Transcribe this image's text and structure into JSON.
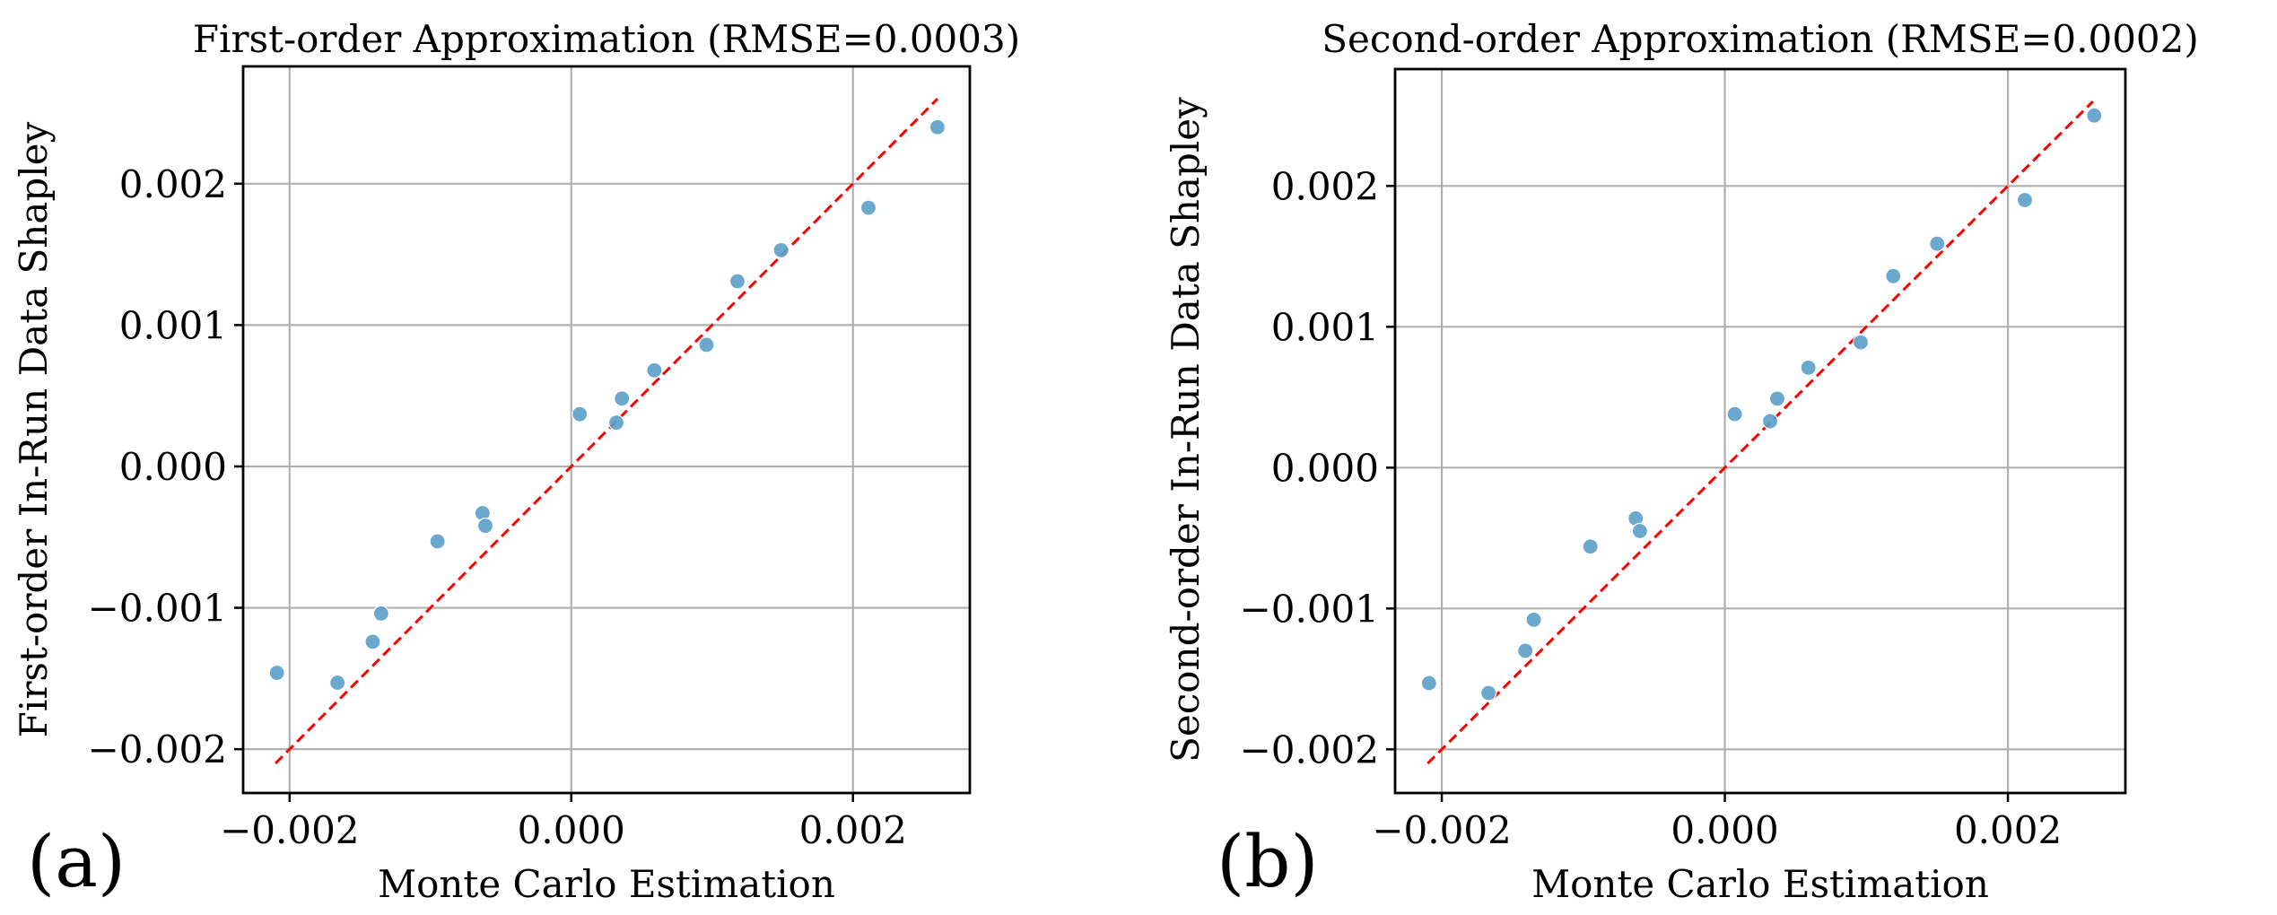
{
  "colors": {
    "points": "#5b9ec9",
    "reference_line": "#ff0000",
    "grid": "#b0b0b0"
  },
  "chart_data": [
    {
      "type": "scatter",
      "panel_label": "(a)",
      "title": "First-order Approximation (RMSE=0.0003)",
      "xlabel": "Monte Carlo Estimation",
      "ylabel": "First-order In-Run Data Shapley",
      "xlim": [
        -0.00233,
        0.00283
      ],
      "ylim": [
        -0.00231,
        0.00283
      ],
      "xticks": [
        -0.002,
        0.0,
        0.002
      ],
      "xtick_labels": [
        "−0.002",
        "0.000",
        "0.002"
      ],
      "yticks": [
        -0.002,
        -0.001,
        0.0,
        0.001,
        0.002
      ],
      "ytick_labels": [
        "−0.002",
        "−0.001",
        "0.000",
        "0.001",
        "0.002"
      ],
      "grid": true,
      "reference_line": {
        "style": "dashed",
        "x": [
          -0.0021,
          0.0026
        ],
        "y": [
          -0.0021,
          0.0026
        ]
      },
      "x": [
        -0.00209,
        -0.00166,
        -0.00141,
        -0.00135,
        -0.00095,
        -0.00063,
        -0.00061,
        6e-05,
        0.00032,
        0.00036,
        0.00059,
        0.00096,
        0.00118,
        0.00149,
        0.00211,
        0.0026
      ],
      "y": [
        -0.00146,
        -0.00153,
        -0.00124,
        -0.00104,
        -0.00053,
        -0.00033,
        -0.00042,
        0.00037,
        0.00031,
        0.00048,
        0.00068,
        0.00086,
        0.00131,
        0.00153,
        0.00183,
        0.0024
      ]
    },
    {
      "type": "scatter",
      "panel_label": "(b)",
      "title": "Second-order Approximation (RMSE=0.0002)",
      "xlabel": "Monte Carlo Estimation",
      "ylabel": "Second-order In-Run Data Shapley",
      "xlim": [
        -0.00233,
        0.00283
      ],
      "ylim": [
        -0.00231,
        0.00283
      ],
      "xticks": [
        -0.002,
        0.0,
        0.002
      ],
      "xtick_labels": [
        "−0.002",
        "0.000",
        "0.002"
      ],
      "yticks": [
        -0.002,
        -0.001,
        0.0,
        0.001,
        0.002
      ],
      "ytick_labels": [
        "−0.002",
        "−0.001",
        "0.000",
        "0.001",
        "0.002"
      ],
      "grid": true,
      "reference_line": {
        "style": "dashed",
        "x": [
          -0.0021,
          0.0026
        ],
        "y": [
          -0.0021,
          0.0026
        ]
      },
      "x": [
        -0.00209,
        -0.00167,
        -0.00141,
        -0.00135,
        -0.00095,
        -0.00063,
        -0.0006,
        7e-05,
        0.00032,
        0.00037,
        0.00059,
        0.00096,
        0.00119,
        0.0015,
        0.00212,
        0.00261
      ],
      "y": [
        -0.00153,
        -0.0016,
        -0.0013,
        -0.00108,
        -0.00056,
        -0.00036,
        -0.00045,
        0.00038,
        0.00033,
        0.00049,
        0.00071,
        0.00089,
        0.00136,
        0.00159,
        0.0019,
        0.0025
      ]
    }
  ]
}
